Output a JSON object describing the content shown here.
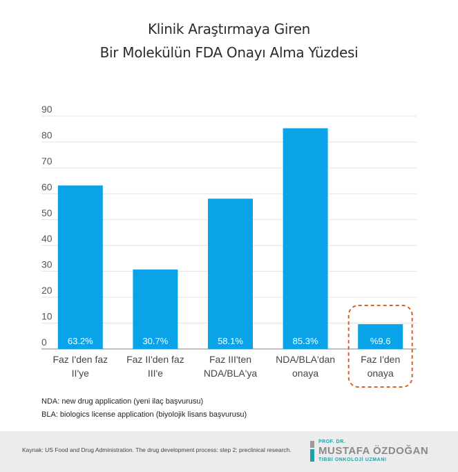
{
  "chart_data": {
    "type": "bar",
    "title_line1": "Klinik Araştırmaya Giren",
    "title_line2": "Bir Molekülün FDA Onayı Alma Yüzdesi",
    "categories": [
      [
        "Faz I'den faz",
        "II'ye"
      ],
      [
        "Faz II'den faz",
        "III'e"
      ],
      [
        "Faz III'ten",
        "NDA/BLA'ya"
      ],
      [
        "NDA/BLA'dan",
        "onaya"
      ],
      [
        "Faz I'den",
        "onaya"
      ]
    ],
    "values": [
      63.2,
      30.7,
      58.1,
      85.3,
      9.6
    ],
    "data_labels": [
      "63.2%",
      "30.7%",
      "58.1%",
      "85.3%",
      "%9.6"
    ],
    "ylim": [
      0,
      90
    ],
    "yticks": [
      0,
      10,
      20,
      30,
      40,
      50,
      60,
      70,
      80,
      90
    ],
    "grid": true,
    "bar_color": "#0aa3e8",
    "highlight_index": 4,
    "highlight_color": "#d4622a"
  },
  "notes": [
    "NDA: new drug application (yeni ilaç başvurusu)",
    "BLA: biologics license application (biyolojik lisans başvurusu)"
  ],
  "footer": {
    "source": "Kaynak: US Food and Drug Administration. The drug development process: step 2: preclinical research.",
    "brand_prefix": "PROF. DR.",
    "brand_name": "MUSTAFA ÖZDOĞAN",
    "brand_sub": "TIBBİ ONKOLOJİ UZMANI"
  }
}
